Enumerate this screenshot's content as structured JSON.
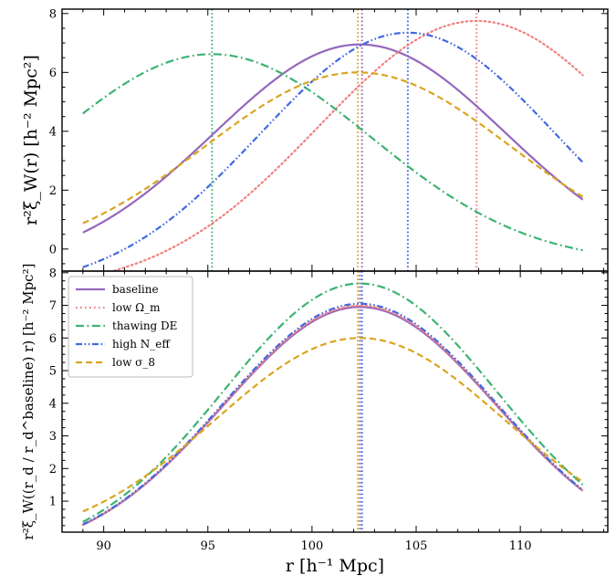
{
  "chart_data": [
    {
      "type": "line",
      "panel": "top",
      "ylabel": "r²ξ_W(r)  [h⁻² Mpc²]",
      "xlim": [
        88,
        114.2
      ],
      "ylim": [
        -0.75,
        8.15
      ],
      "yticks": [
        0,
        2,
        4,
        6,
        8
      ],
      "series": [
        {
          "name": "baseline",
          "color": "#9467bd",
          "dash": "solid",
          "peak_x": 102.3,
          "peak_y": 6.95,
          "sigma": 7.0,
          "base": -0.7
        },
        {
          "name": "low Ω_m",
          "color": "#f08080",
          "dash": "dotted",
          "peak_x": 107.9,
          "peak_y": 7.75,
          "sigma": 7.6,
          "base": -1.4
        },
        {
          "name": "thawing DE",
          "color": "#3cb371",
          "dash": "dashdot",
          "peak_x": 95.2,
          "peak_y": 6.62,
          "sigma": 7.6,
          "base": -0.5
        },
        {
          "name": "high N_eff",
          "color": "#4169e1",
          "dash": "dashdotdot",
          "peak_x": 104.6,
          "peak_y": 7.35,
          "sigma": 7.1,
          "base": -1.4
        },
        {
          "name": "low σ_8",
          "color": "#daa520",
          "dash": "dashed",
          "peak_x": 102.2,
          "peak_y": 6.0,
          "sigma": 7.35,
          "base": -0.4
        }
      ],
      "vlines": [
        {
          "x": 95.2,
          "color": "#3cb371"
        },
        {
          "x": 102.2,
          "color": "#daa520"
        },
        {
          "x": 102.4,
          "color": "#9467bd"
        },
        {
          "x": 104.6,
          "color": "#4169e1"
        },
        {
          "x": 107.9,
          "color": "#f08080"
        }
      ]
    },
    {
      "type": "line",
      "panel": "bottom",
      "ylabel": "r²ξ_W((r_d / r_d^baseline) r)  [h⁻² Mpc²]",
      "xlabel": "r  [h⁻¹ Mpc]",
      "xlim": [
        88,
        114.2
      ],
      "ylim": [
        0.05,
        8.05
      ],
      "yticks": [
        1,
        2,
        3,
        4,
        5,
        6,
        7,
        8
      ],
      "xticks": [
        90,
        95,
        100,
        105,
        110
      ],
      "series": [
        {
          "name": "baseline",
          "color": "#9467bd",
          "dash": "solid",
          "peak_x": 102.3,
          "peak_y": 6.95,
          "sigma": 6.55,
          "base": -0.7
        },
        {
          "name": "low Ω_m",
          "color": "#f08080",
          "dash": "dotted",
          "peak_x": 102.3,
          "peak_y": 6.99,
          "sigma": 6.55,
          "base": -0.7
        },
        {
          "name": "thawing DE",
          "color": "#3cb371",
          "dash": "dashdot",
          "peak_x": 102.3,
          "peak_y": 7.67,
          "sigma": 6.55,
          "base": -0.7
        },
        {
          "name": "high N_eff",
          "color": "#4169e1",
          "dash": "dashdotdot",
          "peak_x": 102.3,
          "peak_y": 7.05,
          "sigma": 6.55,
          "base": -0.7
        },
        {
          "name": "low σ_8",
          "color": "#daa520",
          "dash": "dashed",
          "peak_x": 102.3,
          "peak_y": 6.0,
          "sigma": 6.9,
          "base": -0.3
        }
      ],
      "vlines": [
        {
          "x": 102.2,
          "color": "#daa520"
        },
        {
          "x": 102.3,
          "color": "#9467bd"
        },
        {
          "x": 102.4,
          "color": "#4169e1"
        }
      ],
      "legend": {
        "placement": "top-left",
        "entries": [
          "baseline",
          "low Ω_m",
          "thawing DE",
          "high N_eff",
          "low σ_8"
        ]
      }
    }
  ],
  "x_range": [
    89,
    113
  ]
}
